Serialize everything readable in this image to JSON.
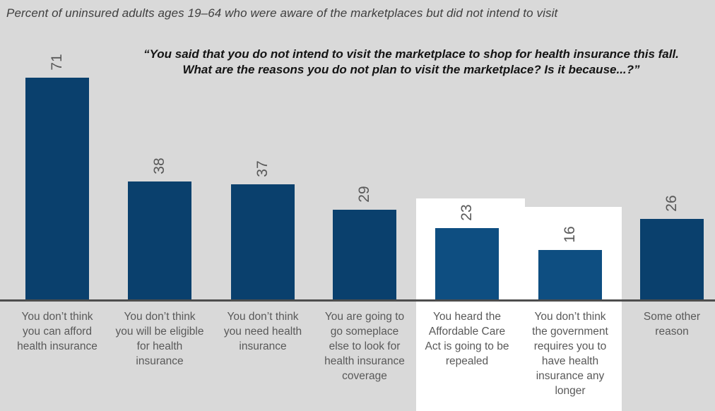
{
  "title": "Percent of uninsured adults ages 19–64 who were aware of the marketplaces but did not intend to visit",
  "question": "“You said that you do not intend to visit the marketplace to shop for health insurance this fall.\nWhat are the reasons you do not plan to visit the marketplace? Is it because...?”",
  "category_labels_wrapped": [
    "You don’t think\nyou can afford\nhealth insurance",
    "You don’t think\nyou will be eligible\nfor health\ninsurance",
    "You don’t think\nyou need health\ninsurance",
    "You are going to\ngo someplace\nelse to look for\nhealth insurance\ncoverage",
    "You heard the\nAffordable Care\nAct is going to be\nrepealed",
    "You don’t think\nthe government\nrequires you to\nhave health\ninsurance any\nlonger",
    "Some other\nreason"
  ],
  "chart_data": {
    "type": "bar",
    "title": "Percent of uninsured adults ages 19–64 who were aware of the marketplaces but did not intend to visit",
    "subtitle": "“You said that you do not intend to visit the marketplace to shop for health insurance this fall. What are the reasons you do not plan to visit the marketplace? Is it because...?”",
    "categories": [
      "You don’t think you can afford health insurance",
      "You don’t think you will be eligible for health insurance",
      "You don’t think you need health insurance",
      "You are going to go someplace else to look for health insurance coverage",
      "You heard the Affordable Care Act is going to be repealed",
      "You don’t think the government requires you to have health insurance any longer",
      "Some other reason"
    ],
    "values": [
      71,
      38,
      37,
      29,
      23,
      16,
      26
    ],
    "highlighted": [
      false,
      false,
      false,
      false,
      true,
      true,
      false
    ],
    "xlabel": "",
    "ylabel": "Percent",
    "ylim": [
      0,
      75
    ],
    "grid": false,
    "legend": "none",
    "value_labels": "rotated 90deg above bars",
    "colors": {
      "bar": "#0a406d",
      "bar_highlight": "#0e4e81",
      "highlight_panel": "#ffffff",
      "background": "#d9d9d9",
      "axis_line": "#4d4d4d",
      "label_text": "#595959"
    }
  }
}
